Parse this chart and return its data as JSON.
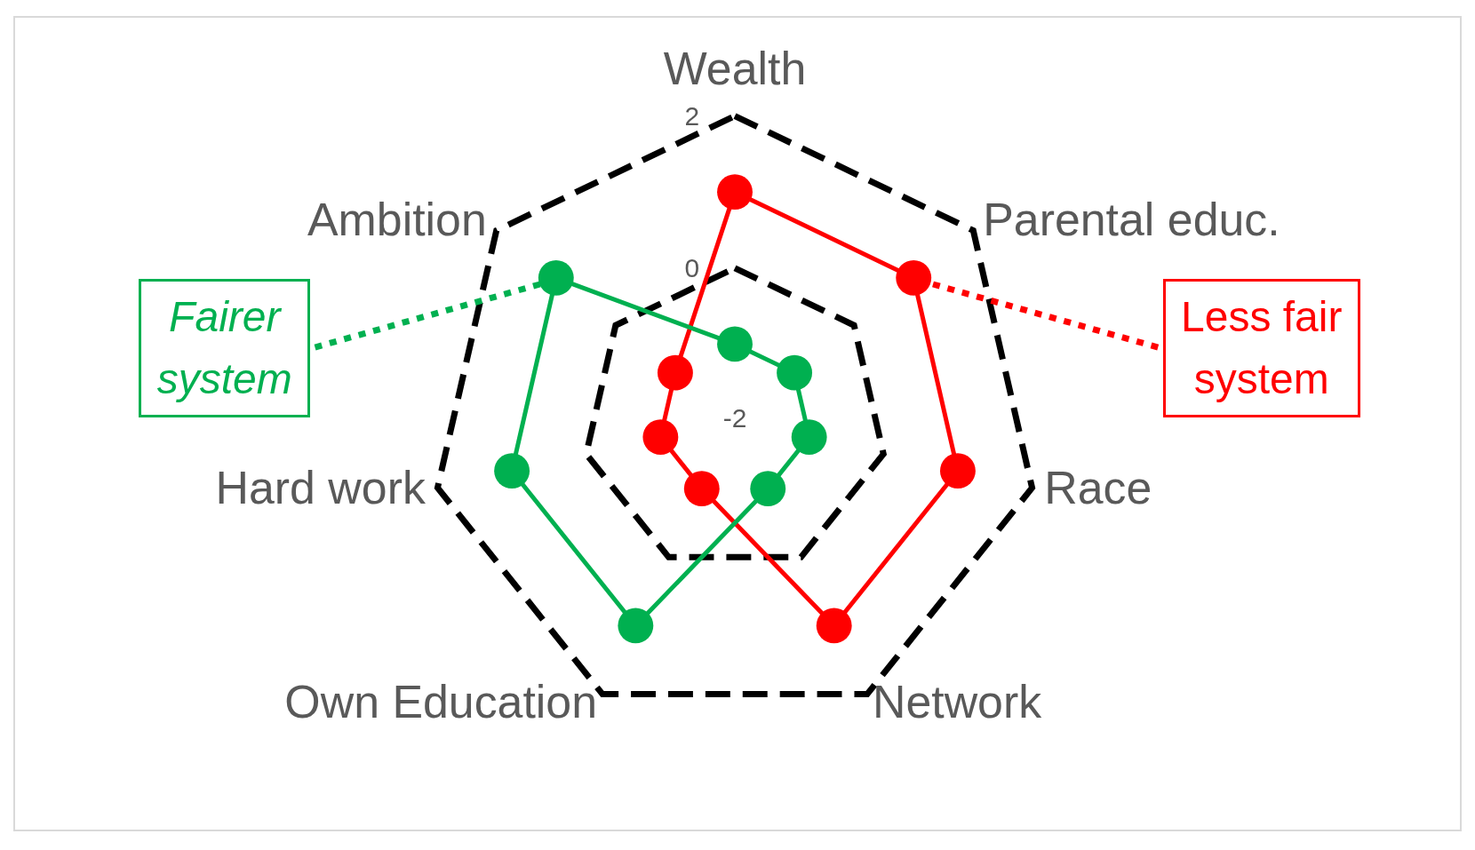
{
  "chart_data": {
    "type": "radar",
    "categories": [
      "Wealth",
      "Parental educ.",
      "Race",
      "Network",
      "Own Education",
      "Hard work",
      "Ambition"
    ],
    "series": [
      {
        "name": "Fairer system",
        "color": "#00b050",
        "values": [
          -1,
          -1,
          -1,
          -1,
          1,
          1,
          1
        ]
      },
      {
        "name": "Less fair system",
        "color": "#ff0000",
        "values": [
          1,
          1,
          1,
          1,
          -1,
          -1,
          -1
        ]
      }
    ],
    "ylim": [
      -2,
      2
    ],
    "yticks": [
      -2,
      0,
      2
    ],
    "grid": true,
    "marker": "circle",
    "line_style": "solid"
  }
}
